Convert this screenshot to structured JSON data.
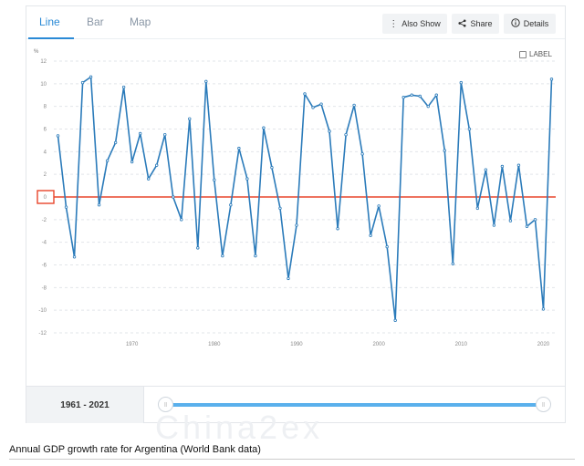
{
  "tabs": [
    "Line",
    "Bar",
    "Map"
  ],
  "toolbar": {
    "also_show": "Also Show",
    "share": "Share",
    "details": "Details"
  },
  "label_toggle": "LABEL",
  "range_label": "1961 - 2021",
  "slider": {
    "start_handle": "||",
    "end_handle": "||"
  },
  "watermark": "China2ex",
  "caption": "Annual GDP growth rate for Argentina (World Bank data)",
  "colors": {
    "line": "#2b7bba",
    "zero_line": "#e8452a",
    "accent": "#2a8ad6",
    "slider": "#5ab0ec"
  },
  "chart_data": {
    "type": "line",
    "ylabel": "%",
    "ylim": [
      -12,
      12
    ],
    "yticks": [
      12,
      10,
      8,
      6,
      4,
      2,
      0,
      -2,
      -4,
      -6,
      -8,
      -10,
      -12
    ],
    "xticks": [
      1970,
      1980,
      1990,
      2000,
      2010,
      2020
    ],
    "xlim": [
      1960.5,
      2021.5
    ],
    "highlighted_value": 0,
    "grid": true,
    "series": [
      {
        "x": [
          1961,
          1962,
          1963,
          1964,
          1965,
          1966,
          1967,
          1968,
          1969,
          1970,
          1971,
          1972,
          1973,
          1974,
          1975,
          1976,
          1977,
          1978,
          1979,
          1980,
          1981,
          1982,
          1983,
          1984,
          1985,
          1986,
          1987,
          1988,
          1989,
          1990,
          1991,
          1992,
          1993,
          1994,
          1995,
          1996,
          1997,
          1998,
          1999,
          2000,
          2001,
          2002,
          2003,
          2004,
          2005,
          2006,
          2007,
          2008,
          2009,
          2010,
          2011,
          2012,
          2013,
          2014,
          2015,
          2016,
          2017,
          2018,
          2019,
          2020,
          2021
        ],
        "values": [
          5.4,
          -0.9,
          -5.3,
          10.1,
          10.6,
          -0.7,
          3.2,
          4.8,
          9.7,
          3.1,
          5.6,
          1.6,
          2.8,
          5.5,
          0.0,
          -2.0,
          6.9,
          -4.5,
          10.2,
          1.5,
          -5.2,
          -0.7,
          4.3,
          1.6,
          -5.2,
          6.1,
          2.6,
          -1.0,
          -7.2,
          -2.5,
          9.1,
          7.9,
          8.2,
          5.8,
          -2.8,
          5.5,
          8.1,
          3.8,
          -3.4,
          -0.8,
          -4.4,
          -10.9,
          8.8,
          9.0,
          8.9,
          8.0,
          9.0,
          4.1,
          -5.9,
          10.1,
          6.0,
          -1.0,
          2.4,
          -2.5,
          2.7,
          -2.1,
          2.8,
          -2.6,
          -2.0,
          -9.9,
          10.4
        ]
      }
    ]
  }
}
